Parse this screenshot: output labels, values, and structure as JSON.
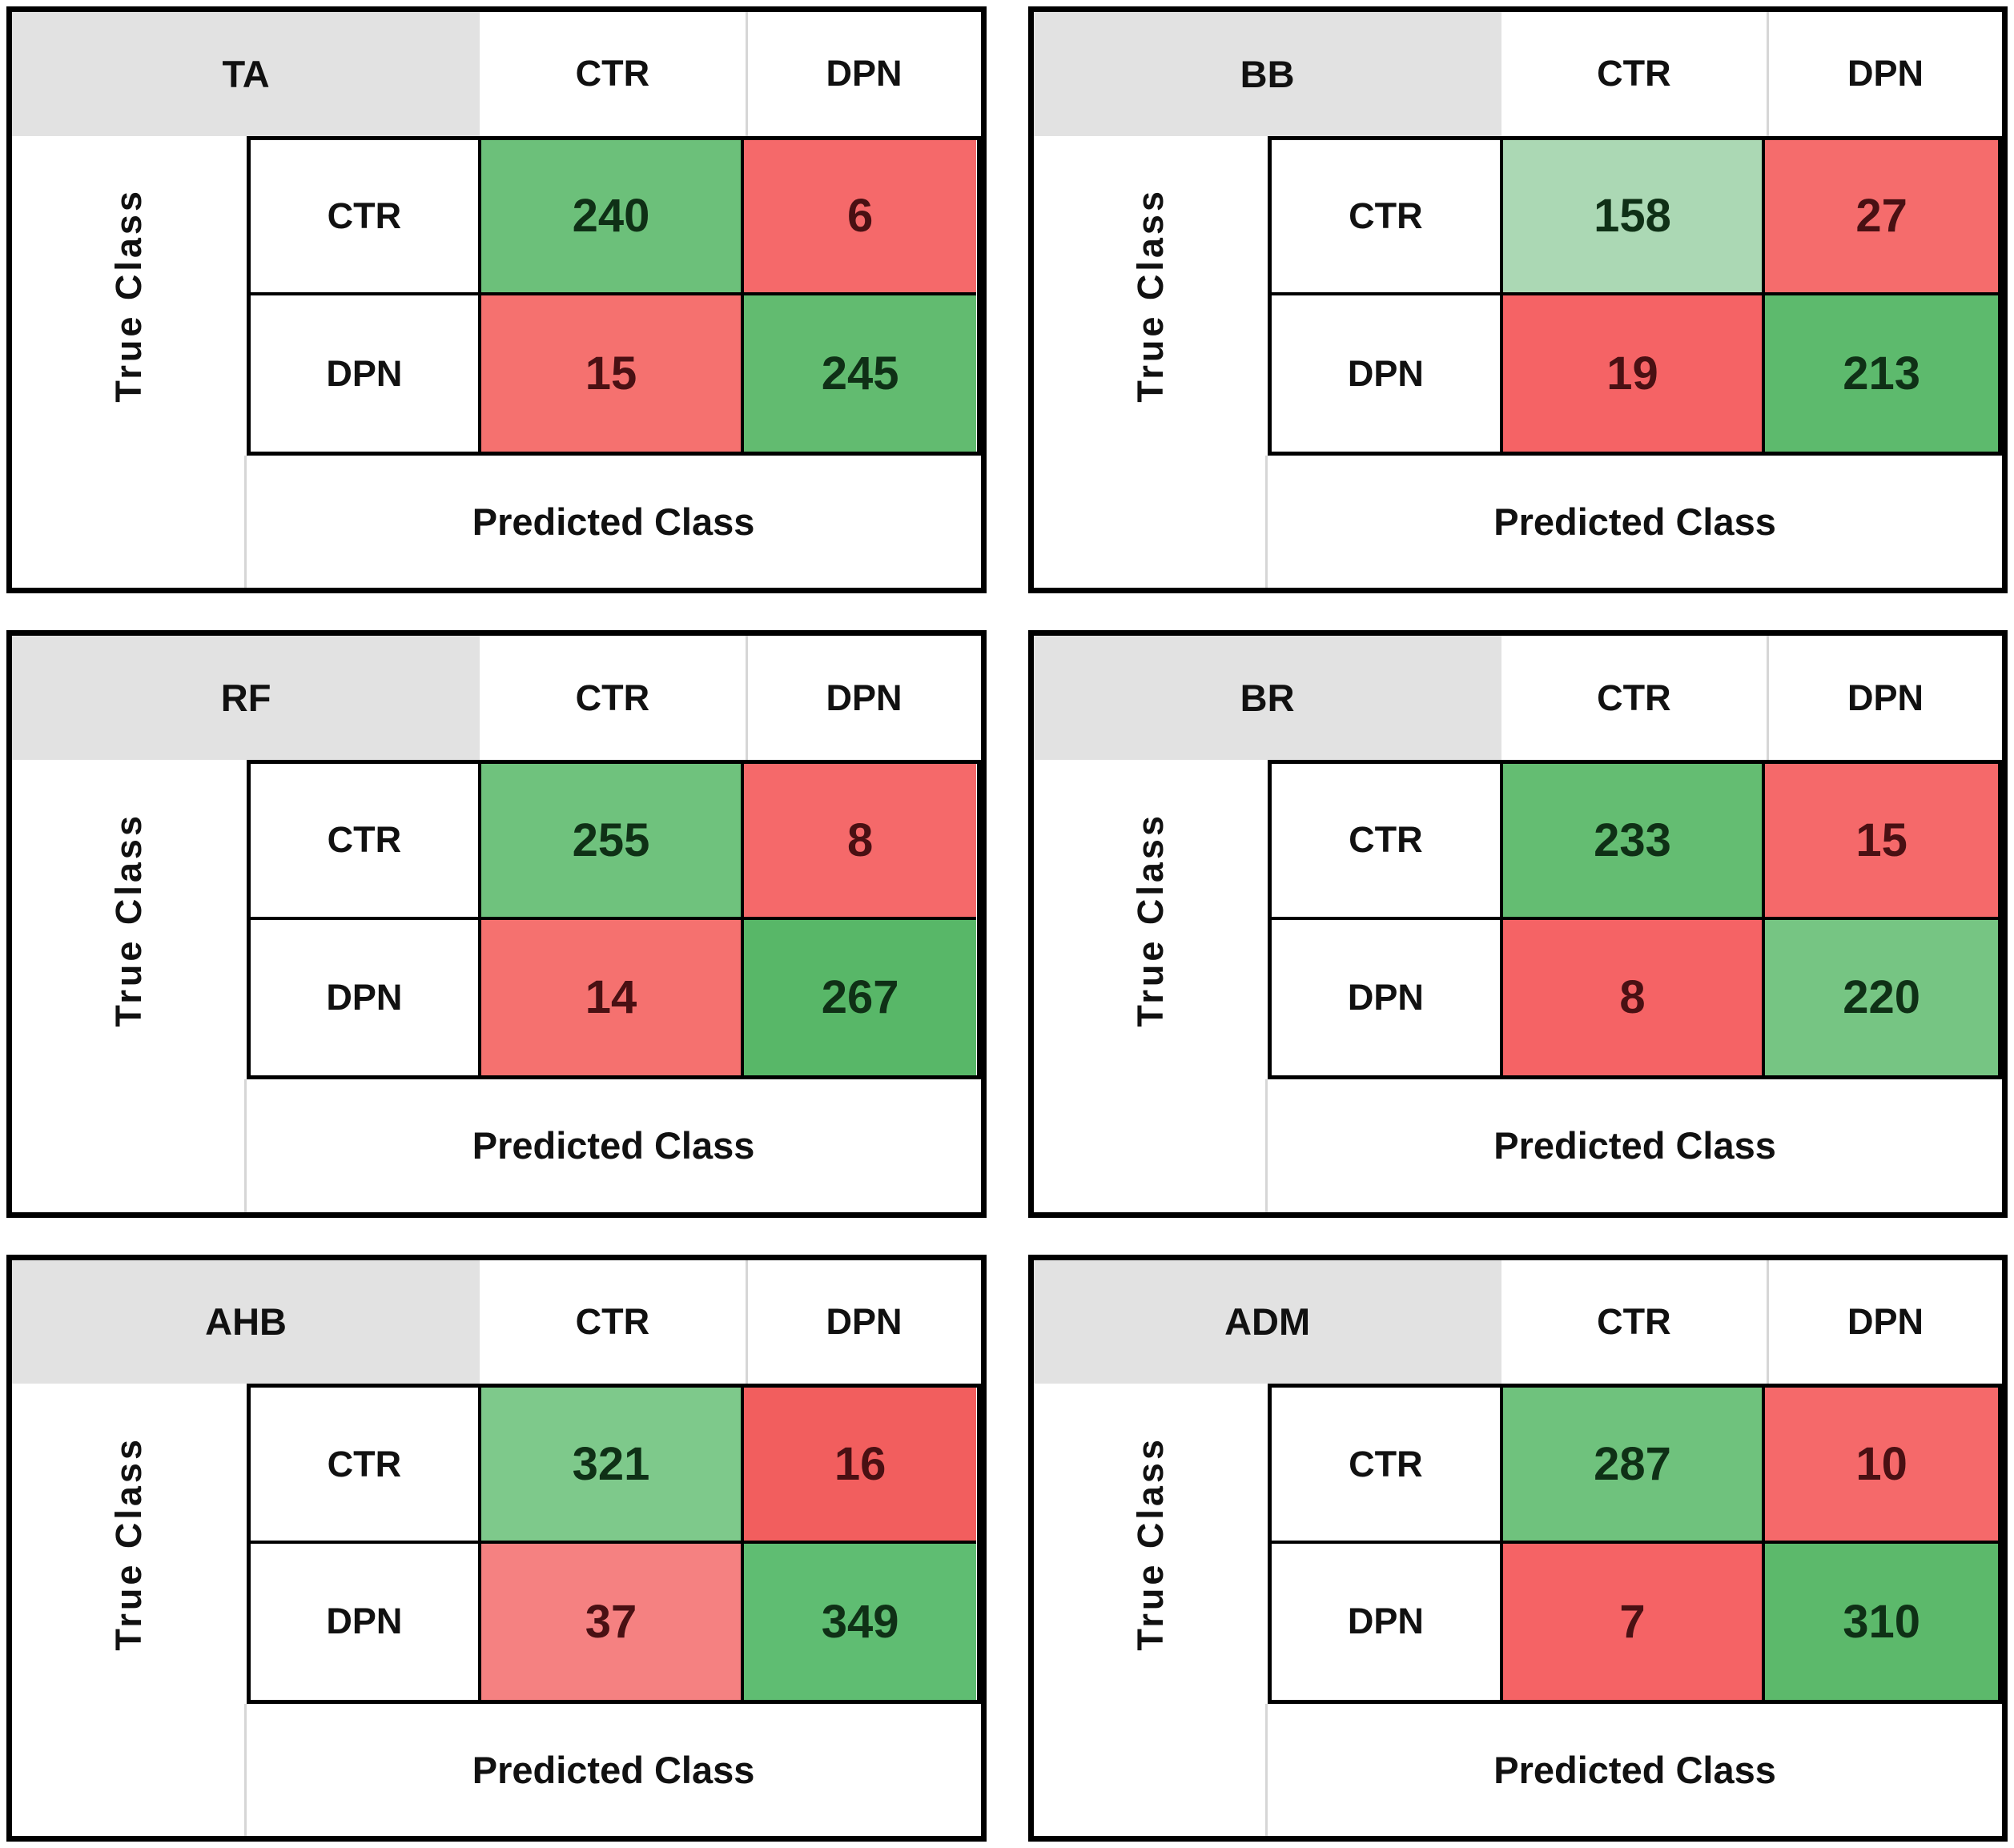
{
  "labels": {
    "true_class": "True Class",
    "predicted_class": "Predicted Class"
  },
  "colors": {
    "header_gray": "#e2e2e2",
    "separator_gray": "#d6d6d6",
    "border_black": "#000000",
    "green_text": "#0f3016",
    "red_text": "#491013"
  },
  "matrices": [
    {
      "title": "TA",
      "col_headers": [
        "CTR",
        "DPN"
      ],
      "row_headers": [
        "CTR",
        "DPN"
      ],
      "cells": [
        {
          "value": 240,
          "style": "background:#6cc07a;color:#0f3016"
        },
        {
          "value": 6,
          "style": "background:#f5696a;color:#491013"
        },
        {
          "value": 15,
          "style": "background:#f5716f;color:#491013"
        },
        {
          "value": 245,
          "style": "background:#62bb70;color:#0f3016"
        }
      ]
    },
    {
      "title": "BB",
      "col_headers": [
        "CTR",
        "DPN"
      ],
      "row_headers": [
        "CTR",
        "DPN"
      ],
      "cells": [
        {
          "value": 158,
          "style": "background:#abd8b4;color:#0f3016"
        },
        {
          "value": 27,
          "style": "background:#f56c6c;color:#491013"
        },
        {
          "value": 19,
          "style": "background:#f56365;color:#491013"
        },
        {
          "value": 213,
          "style": "background:#5dba6d;color:#0f3016"
        }
      ]
    },
    {
      "title": "RF",
      "col_headers": [
        "CTR",
        "DPN"
      ],
      "row_headers": [
        "CTR",
        "DPN"
      ],
      "cells": [
        {
          "value": 255,
          "style": "background:#6fc27d;color:#0f3016"
        },
        {
          "value": 8,
          "style": "background:#f5696a;color:#491013"
        },
        {
          "value": 14,
          "style": "background:#f5716f;color:#491013"
        },
        {
          "value": 267,
          "style": "background:#58b768;color:#0f3016"
        }
      ]
    },
    {
      "title": "BR",
      "col_headers": [
        "CTR",
        "DPN"
      ],
      "row_headers": [
        "CTR",
        "DPN"
      ],
      "cells": [
        {
          "value": 233,
          "style": "background:#64bd72;color:#0f3016"
        },
        {
          "value": 15,
          "style": "background:#f5696a;color:#491013"
        },
        {
          "value": 8,
          "style": "background:#f56365;color:#491013"
        },
        {
          "value": 220,
          "style": "background:#76c583;color:#0f3016"
        }
      ]
    },
    {
      "title": "AHB",
      "col_headers": [
        "CTR",
        "DPN"
      ],
      "row_headers": [
        "CTR",
        "DPN"
      ],
      "cells": [
        {
          "value": 321,
          "style": "background:#7ec98b;color:#0f3016"
        },
        {
          "value": 16,
          "style": "background:#f25e5e;color:#491013"
        },
        {
          "value": 37,
          "style": "background:#f58181;color:#491013"
        },
        {
          "value": 349,
          "style": "background:#5fbd72;color:#0f3016"
        }
      ]
    },
    {
      "title": "ADM",
      "col_headers": [
        "CTR",
        "DPN"
      ],
      "row_headers": [
        "CTR",
        "DPN"
      ],
      "cells": [
        {
          "value": 287,
          "style": "background:#6fc27d;color:#0f3016"
        },
        {
          "value": 10,
          "style": "background:#f5696a;color:#491013"
        },
        {
          "value": 7,
          "style": "background:#f56365;color:#491013"
        },
        {
          "value": 310,
          "style": "background:#5cb96b;color:#0f3016"
        }
      ]
    }
  ],
  "chart_data": [
    {
      "type": "heatmap",
      "title": "TA",
      "x_labels": [
        "CTR",
        "DPN"
      ],
      "y_labels": [
        "CTR",
        "DPN"
      ],
      "xlabel": "Predicted Class",
      "ylabel": "True Class",
      "values": [
        [
          240,
          6
        ],
        [
          15,
          245
        ]
      ]
    },
    {
      "type": "heatmap",
      "title": "BB",
      "x_labels": [
        "CTR",
        "DPN"
      ],
      "y_labels": [
        "CTR",
        "DPN"
      ],
      "xlabel": "Predicted Class",
      "ylabel": "True Class",
      "values": [
        [
          158,
          27
        ],
        [
          19,
          213
        ]
      ]
    },
    {
      "type": "heatmap",
      "title": "RF",
      "x_labels": [
        "CTR",
        "DPN"
      ],
      "y_labels": [
        "CTR",
        "DPN"
      ],
      "xlabel": "Predicted Class",
      "ylabel": "True Class",
      "values": [
        [
          255,
          8
        ],
        [
          14,
          267
        ]
      ]
    },
    {
      "type": "heatmap",
      "title": "BR",
      "x_labels": [
        "CTR",
        "DPN"
      ],
      "y_labels": [
        "CTR",
        "DPN"
      ],
      "xlabel": "Predicted Class",
      "ylabel": "True Class",
      "values": [
        [
          233,
          15
        ],
        [
          8,
          220
        ]
      ]
    },
    {
      "type": "heatmap",
      "title": "AHB",
      "x_labels": [
        "CTR",
        "DPN"
      ],
      "y_labels": [
        "CTR",
        "DPN"
      ],
      "xlabel": "Predicted Class",
      "ylabel": "True Class",
      "values": [
        [
          321,
          16
        ],
        [
          37,
          349
        ]
      ]
    },
    {
      "type": "heatmap",
      "title": "ADM",
      "x_labels": [
        "CTR",
        "DPN"
      ],
      "y_labels": [
        "CTR",
        "DPN"
      ],
      "xlabel": "Predicted Class",
      "ylabel": "True Class",
      "values": [
        [
          287,
          10
        ],
        [
          7,
          310
        ]
      ]
    }
  ]
}
